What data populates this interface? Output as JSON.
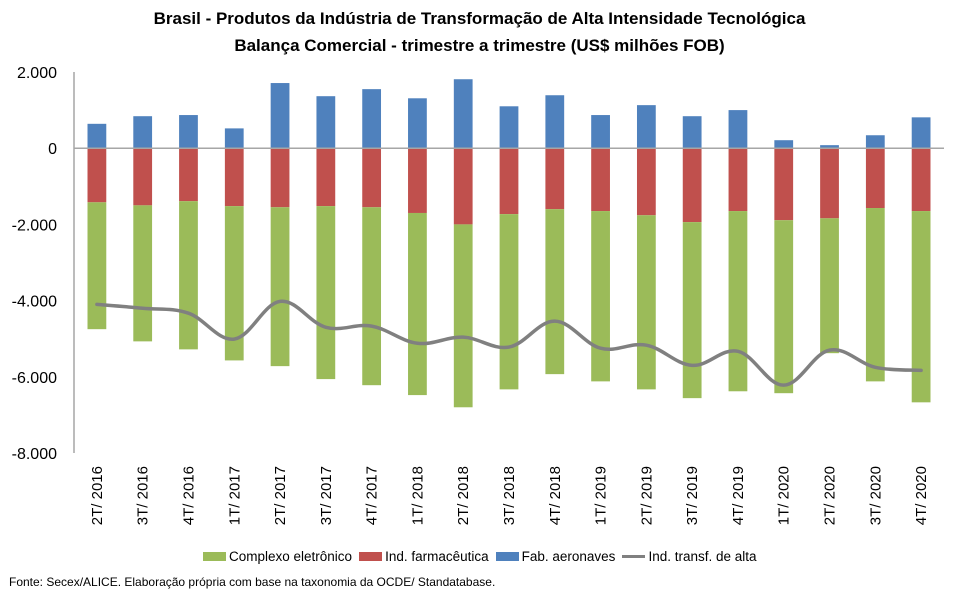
{
  "chart_data": {
    "type": "bar",
    "subtype": "stacked-bar-with-line",
    "title": "Brasil - Produtos da Indústria de Transformação de Alta Intensidade Tecnológica",
    "subtitle": "Balança Comercial - trimestre a trimestre (US$ milhões FOB)",
    "xlabel": "",
    "ylabel": "",
    "ylim": [
      -8000,
      2000
    ],
    "yticks": [
      2000,
      0,
      -2000,
      -4000,
      -6000,
      -8000
    ],
    "ytick_labels": [
      "2.000",
      "0",
      "-2.000",
      "-4.000",
      "-6.000",
      "-8.000"
    ],
    "grid": false,
    "legend_position": "bottom",
    "categories": [
      "2T/ 2016",
      "3T/ 2016",
      "4T/ 2016",
      "1T/ 2017",
      "2T/ 2017",
      "3T/ 2017",
      "4T/ 2017",
      "1T/ 2018",
      "2T/ 2018",
      "3T/ 2018",
      "4T/ 2018",
      "1T/ 2019",
      "2T/ 2019",
      "3T/ 2019",
      "4T/ 2019",
      "1T/ 2020",
      "2T/ 2020",
      "3T/ 2020",
      "4T/ 2020"
    ],
    "series": [
      {
        "name": "Complexo eletrônico",
        "type": "bar",
        "color": "#9BBB59",
        "values": [
          -3330,
          -3570,
          -3890,
          -4050,
          -4170,
          -4540,
          -4670,
          -4780,
          -4800,
          -4600,
          -4330,
          -4470,
          -4570,
          -4620,
          -4730,
          -4540,
          -3540,
          -4550,
          -5020
        ]
      },
      {
        "name": "Ind. farmacêutica",
        "type": "bar",
        "color": "#C0504D",
        "values": [
          -1420,
          -1500,
          -1390,
          -1520,
          -1550,
          -1520,
          -1550,
          -1700,
          -2000,
          -1730,
          -1600,
          -1650,
          -1760,
          -1940,
          -1650,
          -1890,
          -1840,
          -1570,
          -1650
        ]
      },
      {
        "name": "Fab. aeronaves",
        "type": "bar",
        "color": "#4F81BD",
        "values": [
          640,
          840,
          870,
          520,
          1710,
          1365,
          1550,
          1310,
          1810,
          1100,
          1390,
          870,
          1130,
          840,
          1000,
          210,
          80,
          340,
          810
        ]
      },
      {
        "name": "Ind. transf. de alta",
        "type": "line",
        "color": "#808080",
        "values": [
          -4100,
          -4200,
          -4330,
          -5010,
          -4020,
          -4700,
          -4670,
          -5120,
          -4960,
          -5220,
          -4540,
          -5250,
          -5170,
          -5700,
          -5330,
          -6220,
          -5300,
          -5750,
          -5830
        ]
      }
    ]
  },
  "legend": {
    "items": [
      {
        "label": "Complexo eletrônico",
        "color": "#9BBB59"
      },
      {
        "label": "Ind. farmacêutica",
        "color": "#C0504D"
      },
      {
        "label": "Fab. aeronaves",
        "color": "#4F81BD"
      },
      {
        "label": "Ind. transf. de alta",
        "color": "#808080"
      }
    ]
  },
  "source": "Fonte: Secex/ALICE. Elaboração própria com base na taxonomia da OCDE/ Standatabase."
}
